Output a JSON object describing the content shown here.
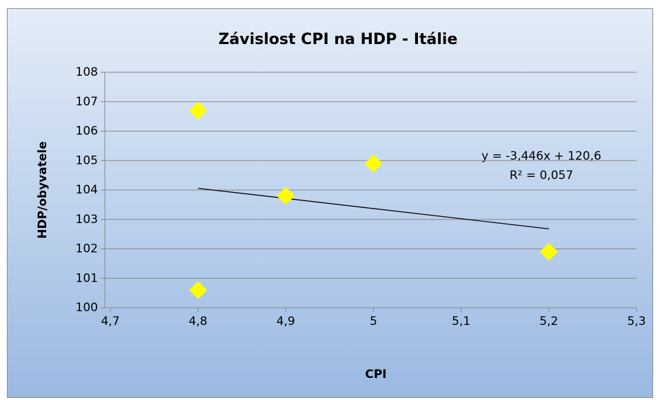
{
  "chart_data": {
    "type": "scatter",
    "title": "Závislost CPI na HDP - Itálie",
    "x_label": "CPI",
    "y_label": "HDP/obyvatele",
    "series": [
      {
        "name": "HDP/obyvatele",
        "color": "#ffff00",
        "x": [
          4.8,
          4.8,
          4.9,
          5,
          5.2
        ],
        "values": [
          106.7,
          100.6,
          103.8,
          104.9,
          101.9
        ]
      }
    ],
    "trendline": {
      "slope": -3.446,
      "intercept": 120.6,
      "equation": "y = -3,446x + 120,6",
      "r2": "R² = 0,057",
      "color": "#000000"
    },
    "xlim": [
      4.7,
      5.3
    ],
    "xticks": [
      {
        "value": 4.7,
        "label": "4,7"
      },
      {
        "value": 4.8,
        "label": "4,8"
      },
      {
        "value": 4.9,
        "label": "4,9"
      },
      5,
      {
        "value": 5.1,
        "label": "5,1"
      },
      {
        "value": 5.2,
        "label": "5,2"
      },
      {
        "value": 5.3,
        "label": "5,3"
      }
    ],
    "ylim": [
      100,
      108
    ],
    "yticks": [
      100,
      101,
      102,
      103,
      104,
      105,
      106,
      107,
      108
    ],
    "grid": true
  }
}
